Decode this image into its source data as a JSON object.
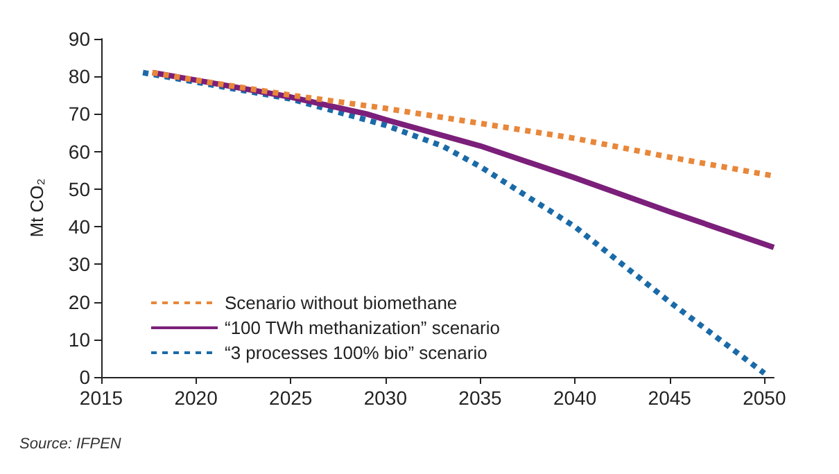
{
  "chart_data": {
    "type": "line",
    "ylabel": "Mt CO₂",
    "xlim": [
      2015,
      2050.5
    ],
    "xticks": [
      2015,
      2020,
      2025,
      2030,
      2035,
      2040,
      2045,
      2050
    ],
    "ylim": [
      0,
      90
    ],
    "yticks": [
      0,
      10,
      20,
      30,
      40,
      50,
      60,
      70,
      80,
      90
    ],
    "grid": false,
    "legend": "bottom left",
    "marker": "none",
    "annotations": [
      "Source: IFPEN"
    ],
    "series": [
      {
        "name": "Scenario without biomethane",
        "color": "#e8873a",
        "line_style": "dotted",
        "x": [
          2017.7,
          2020,
          2025,
          2030,
          2035,
          2040,
          2045,
          2050.5
        ],
        "values": [
          81,
          79,
          75,
          71.5,
          67.5,
          63.5,
          58.5,
          53.5
        ]
      },
      {
        "name": "“100 TWh methanization” scenario",
        "color": "#7b1f7a",
        "line_style": "solid",
        "x": [
          2017.7,
          2020,
          2025,
          2029,
          2030,
          2035,
          2040,
          2045,
          2050.5
        ],
        "values": [
          81,
          79,
          74.5,
          70,
          68.5,
          61.5,
          53,
          44,
          34.5
        ]
      },
      {
        "name": "“3 processes 100% bio” scenario",
        "color": "#1a6aa8",
        "line_style": "dotted",
        "x": [
          2017.2,
          2020,
          2025,
          2030,
          2033,
          2035,
          2040,
          2045,
          2050
        ],
        "values": [
          81,
          78.5,
          74,
          67,
          61.5,
          56,
          40,
          20,
          1
        ]
      }
    ]
  }
}
